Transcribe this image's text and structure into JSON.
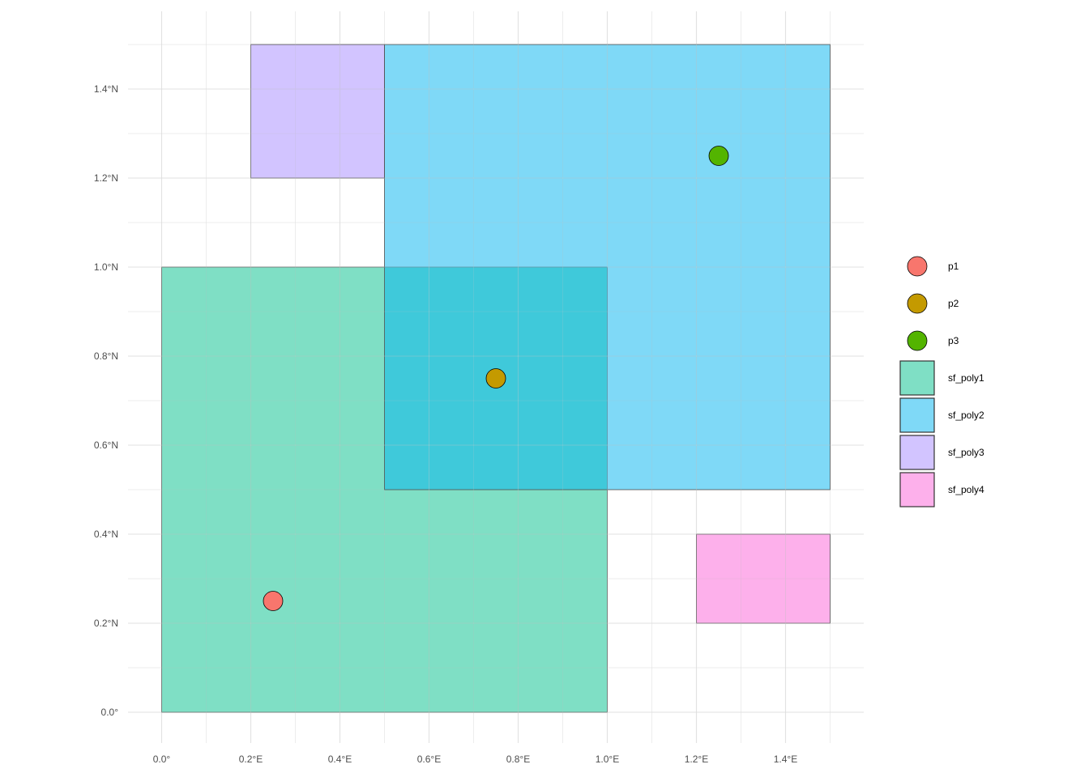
{
  "chart_data": {
    "type": "map",
    "xlim": [
      0,
      1.5
    ],
    "ylim": [
      0,
      1.5
    ],
    "grid": true,
    "legend_position": "right",
    "x_ticks": [
      {
        "value": 0.0,
        "label": "0.0°"
      },
      {
        "value": 0.2,
        "label": "0.2°E"
      },
      {
        "value": 0.4,
        "label": "0.4°E"
      },
      {
        "value": 0.6,
        "label": "0.6°E"
      },
      {
        "value": 0.8,
        "label": "0.8°E"
      },
      {
        "value": 1.0,
        "label": "1.0°E"
      },
      {
        "value": 1.2,
        "label": "1.2°E"
      },
      {
        "value": 1.4,
        "label": "1.4°E"
      }
    ],
    "y_ticks": [
      {
        "value": 0.0,
        "label": "0.0°"
      },
      {
        "value": 0.2,
        "label": "0.2°N"
      },
      {
        "value": 0.4,
        "label": "0.4°N"
      },
      {
        "value": 0.6,
        "label": "0.6°N"
      },
      {
        "value": 0.8,
        "label": "0.8°N"
      },
      {
        "value": 1.0,
        "label": "1.0°N"
      },
      {
        "value": 1.2,
        "label": "1.2°N"
      },
      {
        "value": 1.4,
        "label": "1.4°N"
      }
    ],
    "polygons": [
      {
        "name": "sf_poly1",
        "xmin": 0.0,
        "xmax": 1.0,
        "ymin": 0.0,
        "ymax": 1.0,
        "color": "#00C08B"
      },
      {
        "name": "sf_poly2",
        "xmin": 0.5,
        "xmax": 1.5,
        "ymin": 0.5,
        "ymax": 1.5,
        "color": "#00B4EF"
      },
      {
        "name": "sf_poly3",
        "xmin": 0.2,
        "xmax": 0.5,
        "ymin": 1.2,
        "ymax": 1.5,
        "color": "#A58AFF"
      },
      {
        "name": "sf_poly4",
        "xmin": 1.2,
        "xmax": 1.5,
        "ymin": 0.2,
        "ymax": 0.4,
        "color": "#FB61D7"
      }
    ],
    "points": [
      {
        "name": "p1",
        "x": 0.25,
        "y": 0.25,
        "color": "#F8766D"
      },
      {
        "name": "p2",
        "x": 0.75,
        "y": 0.75,
        "color": "#C49A00"
      },
      {
        "name": "p3",
        "x": 1.25,
        "y": 1.25,
        "color": "#53B400"
      }
    ],
    "legend": [
      {
        "label": "p1",
        "kind": "point",
        "color": "#F8766D"
      },
      {
        "label": "p2",
        "kind": "point",
        "color": "#C49A00"
      },
      {
        "label": "p3",
        "kind": "point",
        "color": "#53B400"
      },
      {
        "label": "sf_poly1",
        "kind": "polygon",
        "color": "#00C08B"
      },
      {
        "label": "sf_poly2",
        "kind": "polygon",
        "color": "#00B4EF"
      },
      {
        "label": "sf_poly3",
        "kind": "polygon",
        "color": "#A58AFF"
      },
      {
        "label": "sf_poly4",
        "kind": "polygon",
        "color": "#FB61D7"
      }
    ]
  }
}
